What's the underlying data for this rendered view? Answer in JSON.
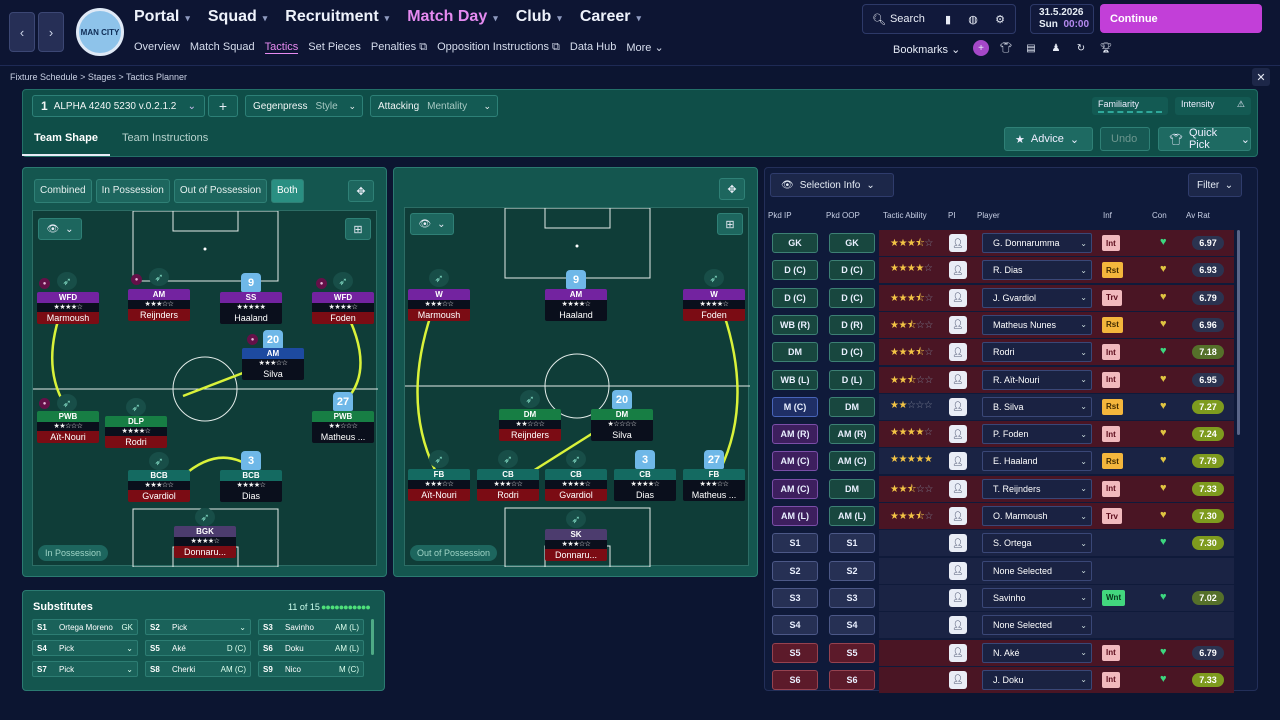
{
  "nav": {
    "back": "‹",
    "forward": "›"
  },
  "club": {
    "crest_text": "MAN CITY"
  },
  "menu": [
    {
      "label": "Portal"
    },
    {
      "label": "Squad"
    },
    {
      "label": "Recruitment"
    },
    {
      "label": "Match Day"
    },
    {
      "label": "Club"
    },
    {
      "label": "Career"
    }
  ],
  "submenu": [
    {
      "label": "Overview"
    },
    {
      "label": "Match Squad"
    },
    {
      "label": "Tactics"
    },
    {
      "label": "Set Pieces"
    },
    {
      "label": "Penalties ⧉"
    },
    {
      "label": "Opposition Instructions ⧉"
    },
    {
      "label": "Data Hub"
    },
    {
      "label": "More ⌄"
    }
  ],
  "header": {
    "search_label": "Search",
    "date": "31.5.2026",
    "day": "Sun",
    "time": "00:00",
    "continue_label": "Continue",
    "bookmarks_label": "Bookmarks",
    "accent": "#c23fd8"
  },
  "breadcrumb": {
    "items": [
      "Fixture Schedule",
      "Stages",
      "Tactics Planner"
    ],
    "separator": ">"
  },
  "tactic": {
    "slot": "1",
    "name": "ALPHA 4240 5230 v.0.2.1.2",
    "style_value": "Gegenpress",
    "style_label": "Style",
    "mentality_value": "Attacking",
    "mentality_label": "Mentality",
    "familiarity_label": "Familiarity",
    "intensity_label": "Intensity"
  },
  "tabs": [
    {
      "label": "Team Shape"
    },
    {
      "label": "Team Instructions"
    }
  ],
  "actions": {
    "advice": "Advice",
    "undo": "Undo",
    "quick_pick": "Quick Pick"
  },
  "phase_toggle": [
    {
      "label": "Combined"
    },
    {
      "label": "In Possession"
    },
    {
      "label": "Out of Possession"
    },
    {
      "label": "Both"
    }
  ],
  "pitch_in": {
    "label": "In Possession",
    "players": [
      {
        "role": "WFD",
        "stars": "★★★★☆",
        "name": "Marmoush"
      },
      {
        "role": "AM",
        "stars": "★★★☆☆",
        "name": "Reijnders"
      },
      {
        "role": "SS",
        "stars": "★★★★★",
        "name": "Haaland",
        "shirt": "9"
      },
      {
        "role": "WFD",
        "stars": "★★★★☆",
        "name": "Foden"
      },
      {
        "role": "AM",
        "stars": "★★★☆☆",
        "name": "Silva",
        "shirt": "20"
      },
      {
        "role": "PWB",
        "stars": "★★☆☆☆",
        "name": "Aït-Nouri"
      },
      {
        "role": "DLP",
        "stars": "★★★★☆",
        "name": "Rodri"
      },
      {
        "role": "PWB",
        "stars": "★★☆☆☆",
        "name": "Matheus ...",
        "shirt": "27"
      },
      {
        "role": "BCB",
        "stars": "★★★☆☆",
        "name": "Gvardiol"
      },
      {
        "role": "BCB",
        "stars": "★★★★☆",
        "name": "Dias",
        "shirt": "3"
      },
      {
        "role": "BGK",
        "stars": "★★★★☆",
        "name": "Donnaru..."
      }
    ]
  },
  "pitch_out": {
    "label": "Out of Possession",
    "players": [
      {
        "role": "W",
        "stars": "★★★☆☆",
        "name": "Marmoush"
      },
      {
        "role": "AM",
        "stars": "★★★★☆",
        "name": "Haaland",
        "shirt": "9"
      },
      {
        "role": "W",
        "stars": "★★★★☆",
        "name": "Foden"
      },
      {
        "role": "DM",
        "stars": "★★☆☆☆",
        "name": "Reijnders"
      },
      {
        "role": "DM",
        "stars": "★☆☆☆☆",
        "name": "Silva",
        "shirt": "20"
      },
      {
        "role": "FB",
        "stars": "★★★☆☆",
        "name": "Aït-Nouri"
      },
      {
        "role": "CB",
        "stars": "★★★☆☆",
        "name": "Rodri"
      },
      {
        "role": "CB",
        "stars": "★★★★☆",
        "name": "Gvardiol"
      },
      {
        "role": "CB",
        "stars": "★★★★☆",
        "name": "Dias",
        "shirt": "3"
      },
      {
        "role": "FB",
        "stars": "★★★☆☆",
        "name": "Matheus ...",
        "shirt": "27"
      },
      {
        "role": "SK",
        "stars": "★★★☆☆",
        "name": "Donnaru..."
      }
    ]
  },
  "substitutes": {
    "title": "Substitutes",
    "count": "11 of 15",
    "dots": "●●●●●●●●●●●",
    "cells": [
      {
        "slot": "S1",
        "name": "Ortega Moreno",
        "pos": "GK"
      },
      {
        "slot": "S2",
        "name": "Pick",
        "pos": "⌄"
      },
      {
        "slot": "S3",
        "name": "Savinho",
        "pos": "AM (L)"
      },
      {
        "slot": "S4",
        "name": "Pick",
        "pos": "⌄"
      },
      {
        "slot": "S5",
        "name": "Aké",
        "pos": "D (C)"
      },
      {
        "slot": "S6",
        "name": "Doku",
        "pos": "AM (L)"
      },
      {
        "slot": "S7",
        "name": "Pick",
        "pos": "⌄"
      },
      {
        "slot": "S8",
        "name": "Cherki",
        "pos": "AM (C)"
      },
      {
        "slot": "S9",
        "name": "Nico",
        "pos": "M (C)"
      }
    ]
  },
  "selection": {
    "info_label": "Selection Info",
    "filter_label": "Filter",
    "headers": [
      "Pkd IP",
      "Pkd OOP",
      "Tactic Ability",
      "PI",
      "Player",
      "Inf",
      "Con",
      "Av Rat"
    ],
    "rows": [
      {
        "ip": "GK",
        "oop": "GK",
        "stars": "★★★",
        "half": "⯪",
        "empty": "☆",
        "player": "G. Donnarumma",
        "inf": "Int",
        "con": "♥",
        "rat": "6.97"
      },
      {
        "ip": "D (C)",
        "oop": "D (C)",
        "stars": "★★★★",
        "half": "",
        "empty": "☆",
        "player": "R. Dias",
        "inf": "Rst",
        "con": "♥",
        "rat": "6.93"
      },
      {
        "ip": "D (C)",
        "oop": "D (C)",
        "stars": "★★★",
        "half": "⯪",
        "empty": "☆",
        "player": "J. Gvardiol",
        "inf": "Trv",
        "con": "♥",
        "rat": "6.79"
      },
      {
        "ip": "WB (R)",
        "oop": "D (R)",
        "stars": "★★",
        "half": "⯪",
        "empty": "☆☆",
        "player": "Matheus Nunes",
        "inf": "Rst",
        "con": "♥",
        "rat": "6.96"
      },
      {
        "ip": "DM",
        "oop": "D (C)",
        "stars": "★★★",
        "half": "⯪",
        "empty": "☆",
        "player": "Rodri",
        "inf": "Int",
        "con": "♥",
        "rat": "7.18"
      },
      {
        "ip": "WB (L)",
        "oop": "D (L)",
        "stars": "★★",
        "half": "⯪",
        "empty": "☆☆",
        "player": "R. Aït-Nouri",
        "inf": "Int",
        "con": "♥",
        "rat": "6.95"
      },
      {
        "ip": "M (C)",
        "oop": "DM",
        "stars": "★★",
        "half": "",
        "empty": "☆☆☆",
        "player": "B. Silva",
        "inf": "Rst",
        "con": "♥",
        "rat": "7.27"
      },
      {
        "ip": "AM (R)",
        "oop": "AM (R)",
        "stars": "★★★★",
        "half": "",
        "empty": "☆",
        "player": "P. Foden",
        "inf": "Int",
        "con": "♥",
        "rat": "7.24"
      },
      {
        "ip": "AM (C)",
        "oop": "AM (C)",
        "stars": "★★★★★",
        "half": "",
        "empty": "",
        "player": "E. Haaland",
        "inf": "Rst",
        "con": "♥",
        "rat": "7.79"
      },
      {
        "ip": "AM (C)",
        "oop": "DM",
        "stars": "★★",
        "half": "⯪",
        "empty": "☆☆",
        "player": "T. Reijnders",
        "inf": "Int",
        "con": "♥",
        "rat": "7.33"
      },
      {
        "ip": "AM (L)",
        "oop": "AM (L)",
        "stars": "★★★",
        "half": "⯪",
        "empty": "☆",
        "player": "O. Marmoush",
        "inf": "Trv",
        "con": "♥",
        "rat": "7.30"
      },
      {
        "ip": "S1",
        "oop": "S1",
        "stars": "",
        "half": "",
        "empty": "",
        "player": "S. Ortega",
        "inf": "",
        "con": "♥",
        "rat": "7.30"
      },
      {
        "ip": "S2",
        "oop": "S2",
        "stars": "",
        "half": "",
        "empty": "",
        "player": "None Selected",
        "inf": "",
        "con": "",
        "rat": ""
      },
      {
        "ip": "S3",
        "oop": "S3",
        "stars": "",
        "half": "",
        "empty": "",
        "player": "Savinho",
        "inf": "Wnt",
        "con": "♥",
        "rat": "7.02"
      },
      {
        "ip": "S4",
        "oop": "S4",
        "stars": "",
        "half": "",
        "empty": "",
        "player": "None Selected",
        "inf": "",
        "con": "",
        "rat": ""
      },
      {
        "ip": "S5",
        "oop": "S5",
        "stars": "",
        "half": "",
        "empty": "",
        "player": "N. Aké",
        "inf": "Int",
        "con": "♥",
        "rat": "6.79"
      },
      {
        "ip": "S6",
        "oop": "S6",
        "stars": "",
        "half": "",
        "empty": "",
        "player": "J. Doku",
        "inf": "Int",
        "con": "♥",
        "rat": "7.33"
      }
    ]
  },
  "colors": {
    "pitch": "#0f3d38",
    "panel": "#14564f",
    "accent_pink": "#e58af0",
    "star": "#f3c445",
    "line": "#d9f23a"
  }
}
